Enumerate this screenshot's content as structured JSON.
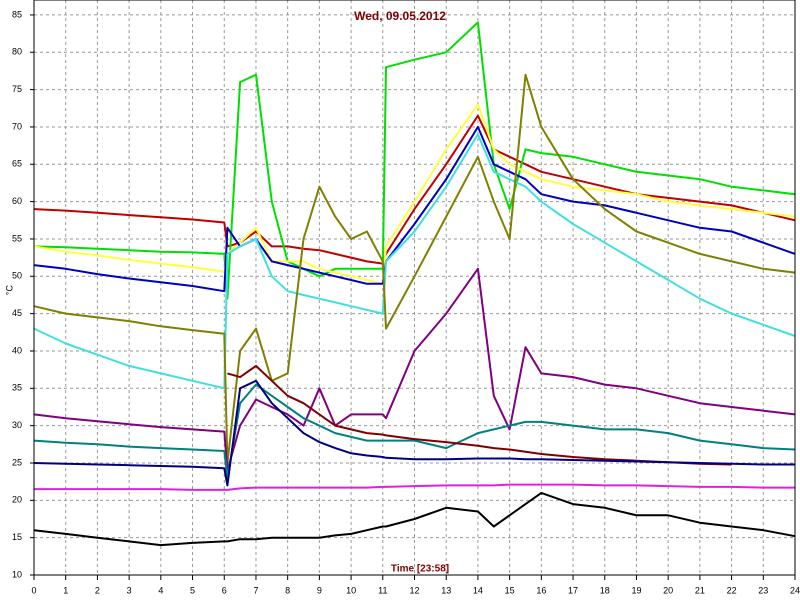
{
  "chart_data": {
    "type": "line",
    "title": "Wed, 09.05.2012",
    "x_label": "Time [23:58]",
    "y_label": "°C",
    "grid": true,
    "xlim": [
      0,
      24
    ],
    "ylim": [
      10,
      87
    ],
    "xticks": [
      0,
      1,
      2,
      3,
      4,
      5,
      6,
      7,
      8,
      9,
      10,
      11,
      12,
      13,
      14,
      15,
      16,
      17,
      18,
      19,
      20,
      21,
      22,
      23,
      24
    ],
    "yticks": [
      10,
      15,
      20,
      25,
      30,
      35,
      40,
      45,
      50,
      55,
      60,
      65,
      70,
      75,
      80,
      85
    ],
    "x": [
      0,
      1,
      2,
      3,
      4,
      5,
      6,
      6.1,
      6.5,
      7,
      7.5,
      8,
      8.5,
      9,
      9.5,
      10,
      10.5,
      11,
      11.1,
      12,
      13,
      14,
      14.5,
      15,
      15.5,
      16,
      17,
      18,
      19,
      20,
      21,
      22,
      23,
      24
    ],
    "series": [
      {
        "color": "#c00000",
        "values": [
          59,
          58.8,
          58.5,
          58.2,
          57.9,
          57.6,
          57.2,
          54,
          54.5,
          56,
          54,
          54,
          53.7,
          53.5,
          53,
          52.5,
          52,
          51.7,
          53,
          59,
          65,
          71.5,
          67,
          66,
          65,
          64,
          63,
          62,
          61,
          60.5,
          60,
          59.5,
          58.5,
          57.5
        ]
      },
      {
        "color": "#00e000",
        "values": [
          54,
          53.9,
          53.7,
          53.5,
          53.3,
          53.2,
          53,
          47,
          76,
          77,
          60,
          52,
          51,
          50,
          51,
          51,
          51,
          51,
          78,
          79,
          80,
          84,
          65,
          59,
          67,
          66.5,
          66,
          65,
          64,
          63.5,
          63,
          62,
          61.5,
          61
        ]
      },
      {
        "color": "#ffff40",
        "values": [
          54,
          53.3,
          52.8,
          52.2,
          51.7,
          51.2,
          50.6,
          53,
          54.5,
          56.5,
          52,
          52,
          52,
          51,
          50.5,
          50,
          49.5,
          49,
          54,
          60,
          67,
          73,
          67,
          65,
          64,
          63,
          62,
          61.5,
          61,
          60,
          59.5,
          59,
          58.5,
          58
        ]
      },
      {
        "color": "#0000c0",
        "values": [
          51.5,
          51,
          50.3,
          49.7,
          49.2,
          48.7,
          48,
          56.5,
          54,
          55,
          52,
          51.5,
          51,
          50.5,
          50,
          49.5,
          49,
          49,
          52,
          57,
          63,
          70,
          65,
          64,
          63,
          61,
          60,
          59.5,
          58.5,
          57.5,
          56.5,
          56,
          54.5,
          53
        ]
      },
      {
        "color": "#40e0e0",
        "values": [
          43,
          41,
          39.5,
          38,
          37,
          36,
          35,
          53,
          54,
          55,
          50,
          48,
          47.5,
          47,
          46.5,
          46,
          45.5,
          45,
          52,
          56,
          62,
          69,
          64,
          63,
          62,
          60,
          57,
          54.5,
          52,
          49.5,
          47,
          45,
          43.5,
          42
        ]
      },
      {
        "color": "#808000",
        "values": [
          46,
          45,
          44.5,
          44,
          43.3,
          42.8,
          42.3,
          25,
          40,
          43,
          36,
          37,
          55,
          62,
          58,
          55,
          56,
          52,
          43,
          50,
          58,
          66,
          60,
          55,
          77,
          70,
          63,
          59,
          56,
          54.5,
          53,
          52,
          51,
          50.5
        ]
      },
      {
        "color": "#800080",
        "values": [
          31.5,
          31,
          30.6,
          30.2,
          29.8,
          29.5,
          29.2,
          24,
          30,
          33.5,
          32.5,
          31.5,
          30,
          35,
          30,
          31.5,
          31.5,
          31.5,
          31,
          40,
          45,
          51,
          34,
          29.5,
          40.5,
          37,
          36.5,
          35.5,
          35,
          34,
          33,
          32.5,
          32,
          31.5
        ]
      },
      {
        "color": "#008080",
        "values": [
          28,
          27.7,
          27.5,
          27.2,
          27,
          26.8,
          26.6,
          23,
          33,
          35.5,
          34,
          32.5,
          31,
          30,
          29,
          28.5,
          28,
          28,
          28,
          28,
          27,
          29,
          29.5,
          30,
          30.5,
          30.5,
          30,
          29.5,
          29.5,
          29,
          28,
          27.5,
          27,
          26.8
        ]
      },
      {
        "color": "#800000",
        "values": [
          null,
          null,
          null,
          null,
          null,
          null,
          null,
          37,
          36.5,
          38,
          36,
          34,
          33,
          31.5,
          30,
          29.5,
          29,
          28.8,
          28.7,
          28.2,
          27.8,
          27.3,
          27,
          26.8,
          26.5,
          26.2,
          25.8,
          25.5,
          25.3,
          25.1,
          24.9,
          24.8,
          null,
          null
        ]
      },
      {
        "color": "#000080",
        "values": [
          25,
          24.9,
          24.8,
          24.7,
          24.6,
          24.5,
          24.3,
          22,
          35,
          36,
          33,
          31,
          29,
          27.8,
          27,
          26.3,
          26,
          25.8,
          25.7,
          25.5,
          25.5,
          25.6,
          25.6,
          25.6,
          25.5,
          25.5,
          25.4,
          25.3,
          25.2,
          25.1,
          25,
          24.9,
          24.8,
          24.8
        ]
      },
      {
        "color": "#e020e0",
        "values": [
          21.5,
          21.5,
          21.5,
          21.5,
          21.5,
          21.4,
          21.4,
          21.4,
          21.6,
          21.7,
          21.7,
          21.7,
          21.7,
          21.7,
          21.7,
          21.7,
          21.7,
          21.8,
          21.8,
          21.9,
          22,
          22,
          22,
          22.1,
          22.1,
          22.1,
          22.1,
          22,
          22,
          21.9,
          21.8,
          21.8,
          21.7,
          21.7
        ]
      },
      {
        "color": "#000000",
        "values": [
          16,
          15.5,
          15,
          14.5,
          14,
          14.3,
          14.5,
          14.5,
          14.8,
          14.8,
          15,
          15,
          15,
          15,
          15.3,
          15.5,
          16,
          16.5,
          16.5,
          17.5,
          19,
          18.5,
          16.5,
          18,
          19.5,
          21,
          19.5,
          19,
          18,
          18,
          17,
          16.5,
          16,
          15.2
        ]
      }
    ]
  }
}
